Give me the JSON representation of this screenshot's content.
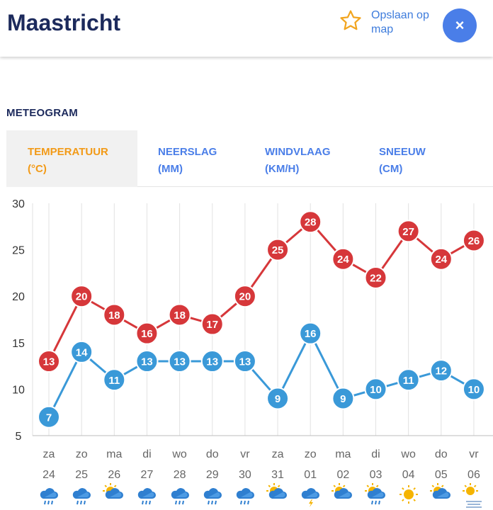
{
  "header": {
    "title": "Maastricht",
    "save_label": "Opslaan op map",
    "close_symbol": "×"
  },
  "section_title": "METEOGRAM",
  "tabs": [
    {
      "line1": "TEMPERATUUR",
      "line2": "(°C)"
    },
    {
      "line1": "NEERSLAG",
      "line2": "(MM)"
    },
    {
      "line1": "WINDVLAAG",
      "line2": "(KM/H)"
    },
    {
      "line1": "SNEEUW",
      "line2": "(CM)"
    }
  ],
  "colors": {
    "max": "#d6373a",
    "min": "#3a99d8",
    "grid": "#e2e2e2",
    "axis_text": "#333333",
    "day_text": "#666666",
    "accent": "#4a7ee8",
    "active_tab": "#f29a17"
  },
  "chart_data": {
    "type": "line",
    "title": "",
    "xlabel": "",
    "ylabel": "",
    "ylim": [
      5,
      30
    ],
    "yticks": [
      5,
      10,
      15,
      20,
      25,
      30
    ],
    "days": [
      {
        "weekday": "za",
        "date": "24",
        "icon": "rain-cloud-icon"
      },
      {
        "weekday": "zo",
        "date": "25",
        "icon": "rain-cloud-icon"
      },
      {
        "weekday": "ma",
        "date": "26",
        "icon": "sun-cloud-icon"
      },
      {
        "weekday": "di",
        "date": "27",
        "icon": "rain-cloud-icon"
      },
      {
        "weekday": "wo",
        "date": "28",
        "icon": "rain-cloud-icon"
      },
      {
        "weekday": "do",
        "date": "29",
        "icon": "rain-cloud-icon"
      },
      {
        "weekday": "vr",
        "date": "30",
        "icon": "rain-cloud-icon"
      },
      {
        "weekday": "za",
        "date": "31",
        "icon": "sun-cloud-icon"
      },
      {
        "weekday": "zo",
        "date": "01",
        "icon": "thunder-cloud-icon"
      },
      {
        "weekday": "ma",
        "date": "02",
        "icon": "sun-cloud-icon"
      },
      {
        "weekday": "di",
        "date": "03",
        "icon": "sun-rain-icon"
      },
      {
        "weekday": "wo",
        "date": "04",
        "icon": "sun-icon"
      },
      {
        "weekday": "do",
        "date": "05",
        "icon": "sun-cloud-icon"
      },
      {
        "weekday": "vr",
        "date": "06",
        "icon": "sun-fog-icon"
      }
    ],
    "series": [
      {
        "name": "max",
        "values": [
          13,
          20,
          18,
          16,
          18,
          17,
          20,
          25,
          28,
          24,
          22,
          27,
          24,
          26
        ]
      },
      {
        "name": "min",
        "values": [
          7,
          14,
          11,
          13,
          13,
          13,
          13,
          9,
          16,
          9,
          10,
          11,
          12,
          10
        ]
      }
    ]
  }
}
